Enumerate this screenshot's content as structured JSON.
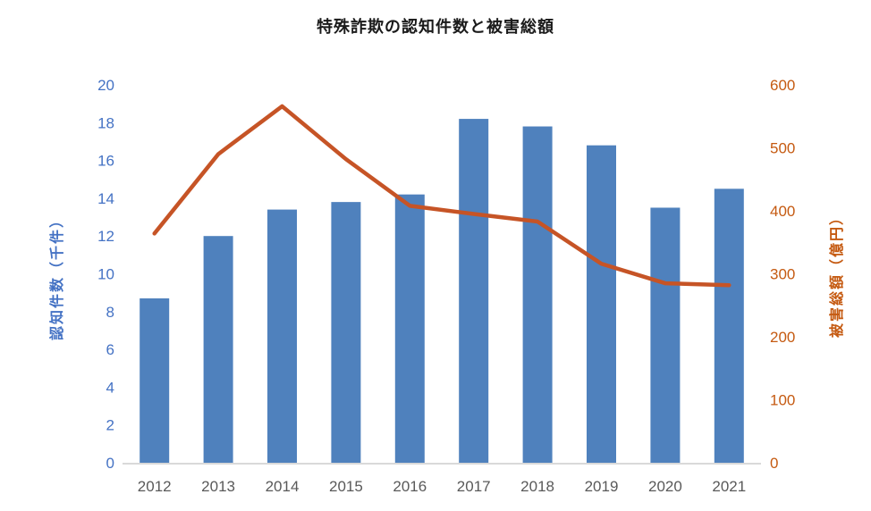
{
  "title": "特殊詐欺の認知件数と被害総額",
  "chart_data": {
    "type": "combo-bar-line",
    "title": "特殊詐欺の認知件数と被害総額",
    "categories": [
      "2012",
      "2013",
      "2014",
      "2015",
      "2016",
      "2017",
      "2018",
      "2019",
      "2020",
      "2021"
    ],
    "series": [
      {
        "name": "認知件数（千件）",
        "type": "bar",
        "axis": "left",
        "color": "#4f81bd",
        "values": [
          8.7,
          12.0,
          13.4,
          13.8,
          14.2,
          18.2,
          17.8,
          16.8,
          13.5,
          14.5
        ]
      },
      {
        "name": "被害総額（億円）",
        "type": "line",
        "axis": "right",
        "color": "#c65426",
        "values": [
          364,
          490,
          566,
          482,
          408,
          395,
          383,
          316,
          285,
          282
        ]
      }
    ],
    "left_axis": {
      "label": "認知件数（千件）",
      "min": 0,
      "max": 20,
      "step": 2,
      "ticks": [
        0,
        2,
        4,
        6,
        8,
        10,
        12,
        14,
        16,
        18,
        20
      ],
      "tick_color": "#4472c4"
    },
    "right_axis": {
      "label": "被害総額（億円）",
      "min": 0,
      "max": 600,
      "step": 100,
      "ticks": [
        0,
        100,
        200,
        300,
        400,
        500,
        600
      ],
      "tick_color": "#c55a11"
    },
    "x_axis": {
      "label_color": "#595959",
      "line_color": "#d9d9d9"
    },
    "grid": false,
    "legend": "none",
    "background": "#ffffff"
  }
}
